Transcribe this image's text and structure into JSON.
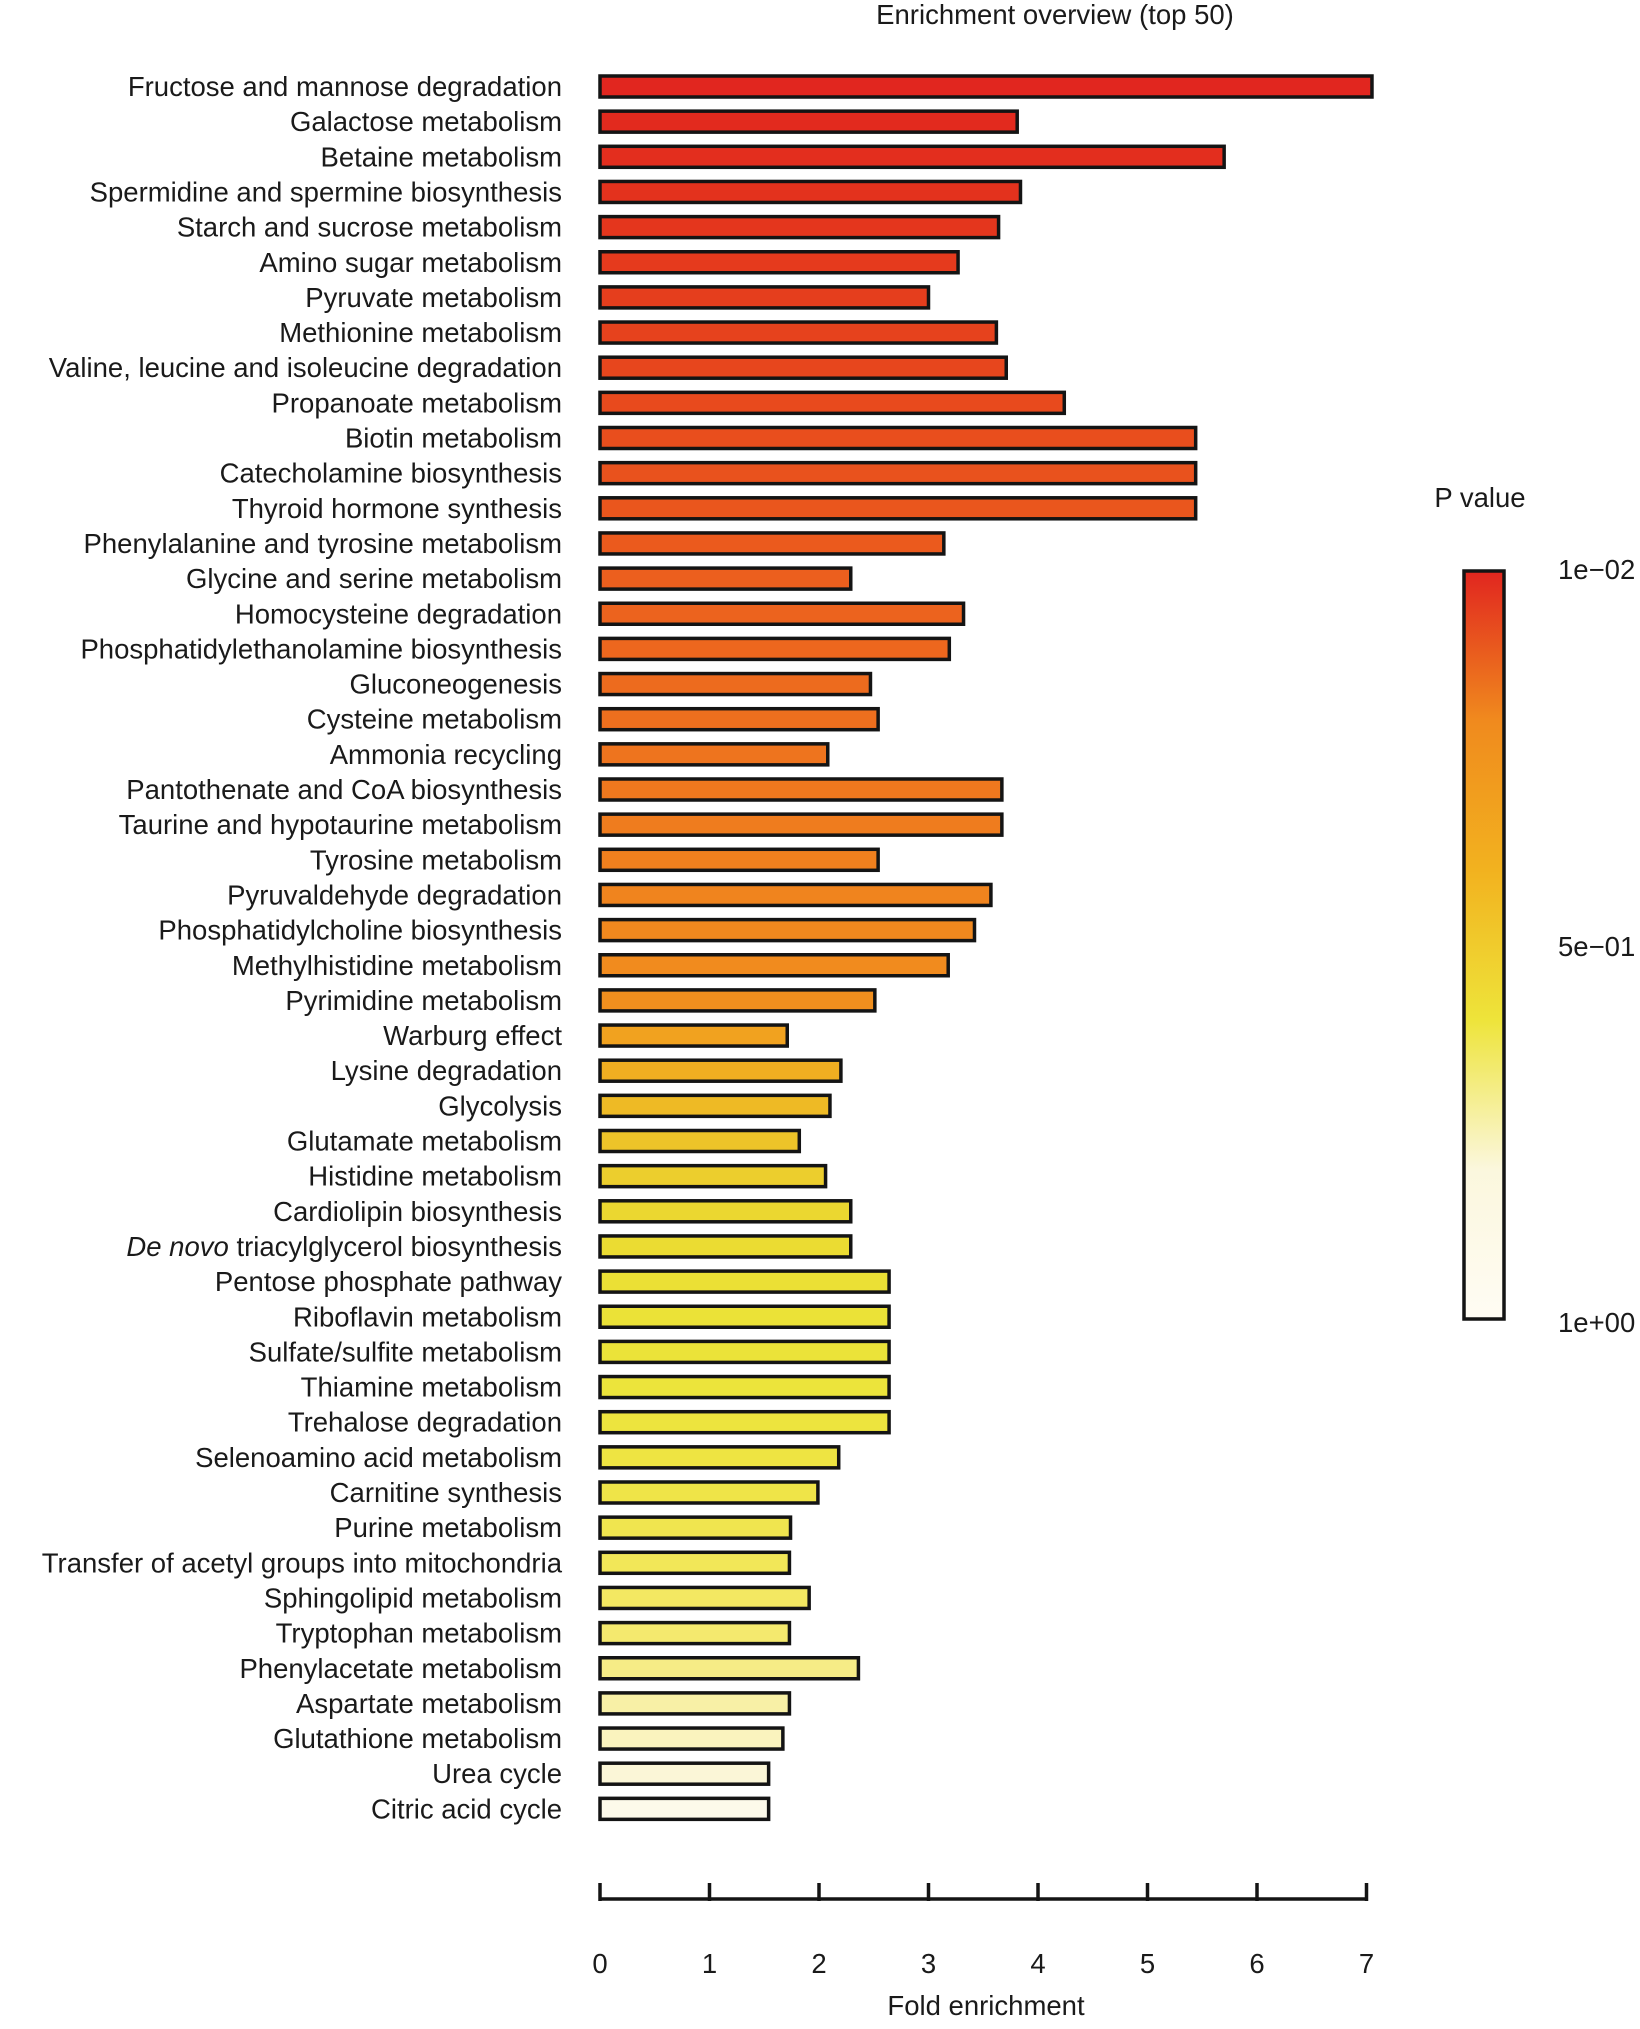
{
  "chart_data": {
    "type": "bar",
    "orientation": "horizontal",
    "title": "Enrichment overview (top 50)",
    "xlabel": "Fold enrichment",
    "ylabel": "",
    "xlim": [
      0,
      7
    ],
    "xticks": [
      "0",
      "1",
      "2",
      "3",
      "4",
      "5",
      "6",
      "7"
    ],
    "grid": false,
    "legend": {
      "title": "P value",
      "placement": "right",
      "ticks": [
        "1e−02",
        "5e−01",
        "1e+00"
      ],
      "colors": [
        "#e1261f",
        "#f08a1e",
        "#f2b21f",
        "#eee43a",
        "#fbf7dd",
        "#fffcf4"
      ]
    },
    "categories": [
      "Fructose and mannose degradation",
      "Galactose metabolism",
      "Betaine metabolism",
      "Spermidine and spermine biosynthesis",
      "Starch and sucrose metabolism",
      "Amino sugar metabolism",
      "Pyruvate metabolism",
      "Methionine metabolism",
      "Valine, leucine and isoleucine degradation",
      "Propanoate metabolism",
      "Biotin metabolism",
      "Catecholamine biosynthesis",
      "Thyroid hormone synthesis",
      "Phenylalanine and tyrosine metabolism",
      "Glycine and serine metabolism",
      "Homocysteine degradation",
      "Phosphatidylethanolamine biosynthesis",
      "Gluconeogenesis",
      "Cysteine metabolism",
      "Ammonia recycling",
      "Pantothenate and CoA biosynthesis",
      "Taurine and hypotaurine metabolism",
      "Tyrosine metabolism",
      "Pyruvaldehyde degradation",
      "Phosphatidylcholine biosynthesis",
      "Methylhistidine metabolism",
      "Pyrimidine metabolism",
      "Warburg effect",
      "Lysine degradation",
      "Glycolysis",
      "Glutamate metabolism",
      "Histidine metabolism",
      "Cardiolipin biosynthesis",
      "De novo triacylglycerol biosynthesis",
      "Pentose phosphate pathway",
      "Riboflavin metabolism",
      "Sulfate/sulfite metabolism",
      "Thiamine metabolism",
      "Trehalose degradation",
      "Selenoamino acid metabolism",
      "Carnitine synthesis",
      "Purine metabolism",
      "Transfer of acetyl groups into mitochondria",
      "Sphingolipid metabolism",
      "Tryptophan metabolism",
      "Phenylacetate metabolism",
      "Aspartate metabolism",
      "Glutathione metabolism",
      "Urea cycle",
      "Citric acid cycle"
    ],
    "values": [
      7.05,
      3.81,
      5.7,
      3.84,
      3.64,
      3.27,
      3.0,
      3.62,
      3.71,
      4.24,
      5.44,
      5.44,
      5.44,
      3.14,
      2.29,
      3.32,
      3.19,
      2.47,
      2.54,
      2.08,
      3.67,
      3.67,
      2.54,
      3.57,
      3.42,
      3.18,
      2.51,
      1.71,
      2.2,
      2.1,
      1.82,
      2.06,
      2.29,
      2.29,
      2.64,
      2.64,
      2.64,
      2.64,
      2.64,
      2.18,
      1.99,
      1.74,
      1.73,
      1.91,
      1.73,
      2.36,
      1.73,
      1.67,
      1.54,
      1.54
    ],
    "colors": [
      "#e1261f",
      "#e22a1e",
      "#e32e1e",
      "#e3321d",
      "#e4361d",
      "#e53a1d",
      "#e53e1d",
      "#e6421d",
      "#e7461d",
      "#e84a1d",
      "#e94e1d",
      "#e9521d",
      "#ea561d",
      "#eb5a1d",
      "#ec5f1e",
      "#ec631e",
      "#ed671e",
      "#ed6b1e",
      "#ee6f1e",
      "#ee741e",
      "#ef781e",
      "#ef7c1e",
      "#f0801e",
      "#f0841e",
      "#f0881e",
      "#f18b1e",
      "#f18f1e",
      "#f1a21f",
      "#f0ae21",
      "#eeba25",
      "#edc429",
      "#ecce2d",
      "#ebd730",
      "#ebdc32",
      "#ebe035",
      "#ebe237",
      "#ebe339",
      "#ece43b",
      "#ede43e",
      "#eee442",
      "#efe448",
      "#f0e54f",
      "#f2e758",
      "#f3e862",
      "#f4e96e",
      "#f6ec86",
      "#f8f0a6",
      "#faf3be",
      "#fbf6d7",
      "#fdfaea"
    ]
  }
}
